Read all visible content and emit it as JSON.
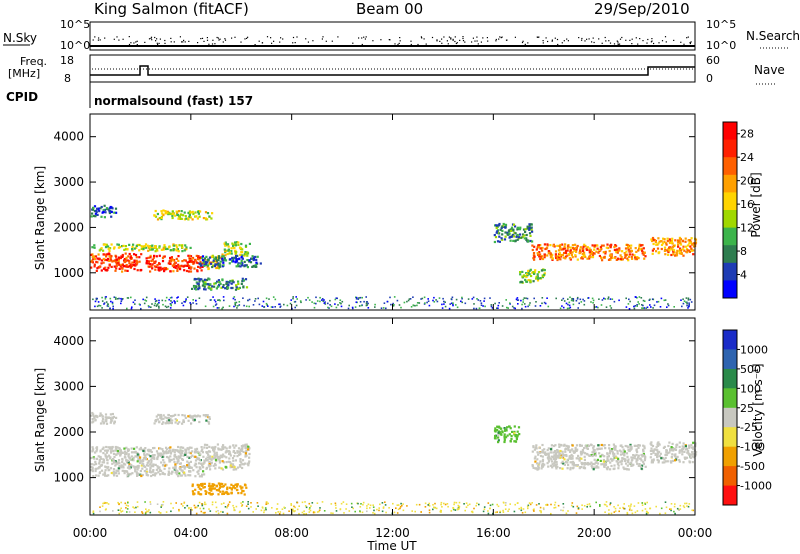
{
  "header": {
    "station": "King Salmon (fitACF)",
    "beam": "Beam 00",
    "date": "29/Sep/2010"
  },
  "top_panels": {
    "nsky_label": "N.Sky",
    "nsky_ticks": [
      "10^5",
      "10^0"
    ],
    "nsearch_label": "N.Search",
    "nsearch_ticks": [
      "10^5",
      "10^0"
    ],
    "freq_label_1": "Freq.",
    "freq_label_2": "[MHz]",
    "freq_ticks": [
      "18",
      "8"
    ],
    "nave_label": "Nave",
    "nave_ticks": [
      "60",
      "0"
    ],
    "cpid_label": "CPID",
    "cpid_value": "normalsound (fast) 157"
  },
  "colors": {
    "power": [
      "#0000ff",
      "#1e3cb4",
      "#2e7d4f",
      "#3cb44b",
      "#a0d800",
      "#ffd400",
      "#ffa000",
      "#ff6000",
      "#ff2000",
      "#ff0000"
    ],
    "velocity": [
      "#1a2cc8",
      "#2e64b0",
      "#2a8a4a",
      "#5ac030",
      "#c8c8c0",
      "#f0e040",
      "#f0a000",
      "#f06000",
      "#ff1010"
    ]
  },
  "chart_data": [
    {
      "type": "heatmap",
      "name": "Power",
      "xlabel": "Time UT",
      "ylabel": "Slant Range [km]",
      "x_ticks": [
        "00:00",
        "04:00",
        "08:00",
        "12:00",
        "16:00",
        "20:00",
        "00:00"
      ],
      "y_ticks": [
        "1000",
        "2000",
        "3000",
        "4000"
      ],
      "xlim_hours": [
        0,
        24
      ],
      "ylim_km": [
        180,
        4500
      ],
      "colorbar_label": "Power [dB]",
      "colorbar_ticks": [
        "4",
        "8",
        "12",
        "16",
        "20",
        "24",
        "28"
      ],
      "colorbar_range": [
        0,
        30
      ],
      "regions": [
        {
          "t0": 0,
          "t1": 2.0,
          "r0": 1050,
          "r1": 1450,
          "v": 25
        },
        {
          "t0": 2.2,
          "t1": 4.5,
          "r0": 1050,
          "r1": 1400,
          "v": 25
        },
        {
          "t0": 4.5,
          "t1": 5.2,
          "r0": 1100,
          "r1": 1400,
          "v": 18
        },
        {
          "t0": 5.2,
          "t1": 6.3,
          "r0": 1400,
          "r1": 1700,
          "v": 14
        },
        {
          "t0": 0,
          "t1": 4.0,
          "r0": 1500,
          "r1": 1650,
          "v": 14
        },
        {
          "t0": 0,
          "t1": 1.0,
          "r0": 2250,
          "r1": 2500,
          "v": 6
        },
        {
          "t0": 2.5,
          "t1": 4.8,
          "r0": 2200,
          "r1": 2400,
          "v": 14
        },
        {
          "t0": 4.3,
          "t1": 6.8,
          "r0": 1150,
          "r1": 1400,
          "v": 6
        },
        {
          "t0": 4.0,
          "t1": 6.2,
          "r0": 650,
          "r1": 900,
          "v": 8
        },
        {
          "t0": 17.0,
          "t1": 18.0,
          "r0": 800,
          "r1": 1100,
          "v": 12
        },
        {
          "t0": 17.5,
          "t1": 22.0,
          "r0": 1300,
          "r1": 1650,
          "v": 22
        },
        {
          "t0": 22.2,
          "t1": 24.0,
          "r0": 1400,
          "r1": 1800,
          "v": 20
        },
        {
          "t0": 16.0,
          "t1": 17.5,
          "r0": 1700,
          "r1": 2100,
          "v": 8
        }
      ]
    },
    {
      "type": "heatmap",
      "name": "Velocity",
      "xlabel": "Time UT",
      "ylabel": "Slant Range [km]",
      "x_ticks": [
        "00:00",
        "04:00",
        "08:00",
        "12:00",
        "16:00",
        "20:00",
        "00:00"
      ],
      "y_ticks": [
        "1000",
        "2000",
        "3000",
        "4000"
      ],
      "xlim_hours": [
        0,
        24
      ],
      "ylim_km": [
        180,
        4500
      ],
      "colorbar_label": "Velocity [m s⁻¹]",
      "colorbar_ticks": [
        "1000",
        "500",
        "100",
        "25",
        "-25",
        "-100",
        "-500",
        "-1000"
      ],
      "regions": [
        {
          "t0": 0,
          "t1": 4.5,
          "r0": 1050,
          "r1": 1700,
          "v": 0
        },
        {
          "t0": 4.5,
          "t1": 6.3,
          "r0": 1200,
          "r1": 1750,
          "v": 0
        },
        {
          "t0": 0,
          "t1": 1.0,
          "r0": 2200,
          "r1": 2450,
          "v": 0
        },
        {
          "t0": 2.5,
          "t1": 4.8,
          "r0": 2200,
          "r1": 2400,
          "v": 0
        },
        {
          "t0": 4.0,
          "t1": 6.2,
          "r0": 650,
          "r1": 900,
          "v": -300
        },
        {
          "t0": 17.5,
          "t1": 22.0,
          "r0": 1200,
          "r1": 1750,
          "v": 0
        },
        {
          "t0": 22.2,
          "t1": 24.0,
          "r0": 1350,
          "r1": 1800,
          "v": 0
        },
        {
          "t0": 16.0,
          "t1": 17.0,
          "r0": 1800,
          "r1": 2150,
          "v": 100
        }
      ]
    }
  ]
}
